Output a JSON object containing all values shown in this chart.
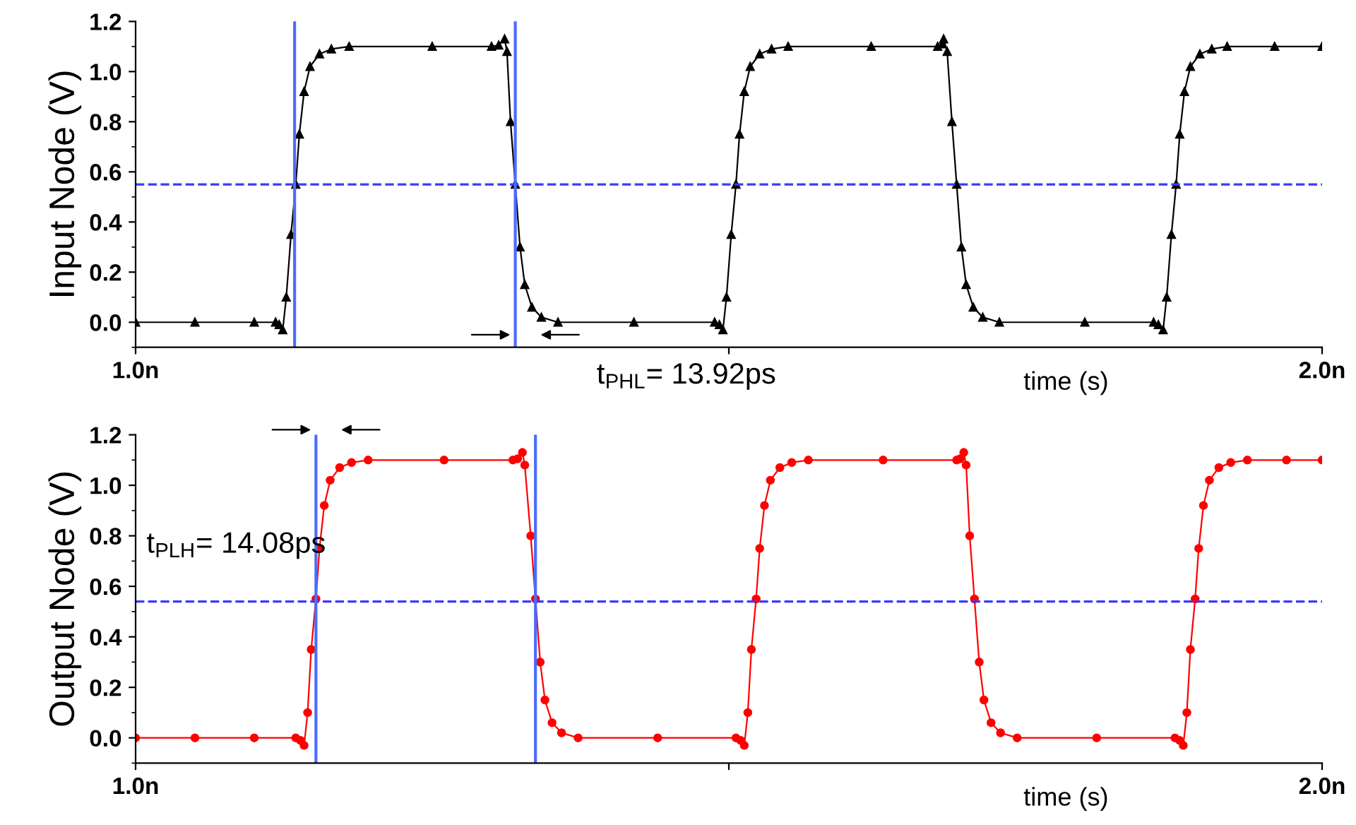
{
  "chart_data": [
    {
      "type": "line",
      "ylabel": "Input Node (V)",
      "xlabel": "time (s)",
      "xlim": [
        1.0,
        2.0
      ],
      "xticks": [
        {
          "value": 1.0,
          "label": "1.0n"
        },
        {
          "value": 1.5,
          "label": null
        },
        {
          "value": 2.0,
          "label": "2.0n"
        }
      ],
      "ylim": [
        -0.1,
        1.2
      ],
      "yticks": [
        {
          "value": 0,
          "label": "0.0"
        },
        {
          "value": 0.2,
          "label": "0.2"
        },
        {
          "value": 0.4,
          "label": "0.4"
        },
        {
          "value": 0.6,
          "label": "0.6"
        },
        {
          "value": 0.8,
          "label": "0.8"
        },
        {
          "value": 1,
          "label": "1.0"
        },
        {
          "value": 1.2,
          "label": "1.2"
        }
      ],
      "grid": false,
      "legend": false,
      "marker": "triangle",
      "line_style": "solid",
      "series": [
        {
          "color": "#000000",
          "x": [
            1.0,
            1.05,
            1.1,
            1.118,
            1.121,
            1.124,
            1.127,
            1.131,
            1.135,
            1.138,
            1.142,
            1.147,
            1.155,
            1.165,
            1.18,
            1.25,
            1.3,
            1.306,
            1.311,
            1.313,
            1.316,
            1.32,
            1.324,
            1.328,
            1.334,
            1.342,
            1.356,
            1.42,
            1.488,
            1.492,
            1.495,
            1.498,
            1.502,
            1.506,
            1.509,
            1.513,
            1.518,
            1.526,
            1.536,
            1.55,
            1.62,
            1.676,
            1.68,
            1.681,
            1.684,
            1.688,
            1.692,
            1.696,
            1.7,
            1.706,
            1.714,
            1.728,
            1.8,
            1.858,
            1.862,
            1.866,
            1.869,
            1.873,
            1.877,
            1.88,
            1.884,
            1.889,
            1.897,
            1.907,
            1.92,
            1.96,
            2.0
          ],
          "values": [
            0,
            0,
            0,
            0,
            -0.01,
            -0.03,
            0.1,
            0.35,
            0.55,
            0.75,
            0.92,
            1.02,
            1.07,
            1.09,
            1.1,
            1.1,
            1.1,
            1.105,
            1.13,
            1.08,
            0.8,
            0.55,
            0.3,
            0.15,
            0.06,
            0.02,
            0,
            0,
            0,
            -0.01,
            -0.03,
            0.1,
            0.35,
            0.55,
            0.75,
            0.92,
            1.02,
            1.07,
            1.09,
            1.1,
            1.1,
            1.1,
            1.11,
            1.13,
            1.08,
            0.8,
            0.55,
            0.3,
            0.15,
            0.06,
            0.02,
            0,
            0,
            0,
            -0.01,
            -0.03,
            0.1,
            0.35,
            0.55,
            0.75,
            0.92,
            1.02,
            1.07,
            1.09,
            1.1,
            1.1,
            1.1
          ]
        }
      ],
      "ref_lines": [
        {
          "axis": "y",
          "value": 0.55,
          "color": "#3a3aff",
          "line_style": "dashed"
        },
        {
          "axis": "x",
          "value": 1.134,
          "color": "#4a6cff",
          "line_style": "solid"
        },
        {
          "axis": "x",
          "value": 1.32,
          "color": "#4a6cff",
          "line_style": "solid"
        }
      ],
      "annotations": [
        "t$_{PHL}$= 13.92ps"
      ]
    },
    {
      "type": "line",
      "ylabel": "Output Node (V)",
      "xlabel": "time (s)",
      "xlim": [
        1.0,
        2.0
      ],
      "xticks": [
        {
          "value": 1.0,
          "label": "1.0n"
        },
        {
          "value": 1.5,
          "label": null
        },
        {
          "value": 2.0,
          "label": "2.0n"
        }
      ],
      "ylim": [
        -0.1,
        1.2
      ],
      "yticks": [
        {
          "value": 0,
          "label": "0.0"
        },
        {
          "value": 0.2,
          "label": "0.2"
        },
        {
          "value": 0.4,
          "label": "0.4"
        },
        {
          "value": 0.6,
          "label": "0.6"
        },
        {
          "value": 0.8,
          "label": "0.8"
        },
        {
          "value": 1,
          "label": "1.0"
        },
        {
          "value": 1.2,
          "label": "1.2"
        }
      ],
      "grid": false,
      "legend": false,
      "marker": "circle",
      "line_style": "solid",
      "series": [
        {
          "color": "#ff0000",
          "x": [
            1.0,
            1.05,
            1.1,
            1.135,
            1.139,
            1.142,
            1.145,
            1.148,
            1.152,
            1.155,
            1.159,
            1.164,
            1.172,
            1.182,
            1.196,
            1.26,
            1.318,
            1.322,
            1.326,
            1.328,
            1.333,
            1.337,
            1.341,
            1.345,
            1.351,
            1.359,
            1.373,
            1.44,
            1.506,
            1.51,
            1.513,
            1.516,
            1.519,
            1.523,
            1.526,
            1.53,
            1.535,
            1.543,
            1.553,
            1.567,
            1.63,
            1.692,
            1.695,
            1.698,
            1.7,
            1.703,
            1.707,
            1.711,
            1.715,
            1.721,
            1.729,
            1.743,
            1.81,
            1.876,
            1.88,
            1.883,
            1.886,
            1.889,
            1.893,
            1.896,
            1.9,
            1.905,
            1.913,
            1.923,
            1.937,
            1.97,
            2.0
          ],
          "values": [
            0,
            0,
            0,
            0,
            -0.01,
            -0.03,
            0.1,
            0.35,
            0.55,
            0.75,
            0.92,
            1.02,
            1.07,
            1.09,
            1.1,
            1.1,
            1.1,
            1.105,
            1.13,
            1.08,
            0.8,
            0.55,
            0.3,
            0.15,
            0.06,
            0.02,
            0,
            0,
            0,
            -0.01,
            -0.03,
            0.1,
            0.35,
            0.55,
            0.75,
            0.92,
            1.02,
            1.07,
            1.09,
            1.1,
            1.1,
            1.1,
            1.105,
            1.13,
            1.08,
            0.8,
            0.55,
            0.3,
            0.15,
            0.06,
            0.02,
            0,
            0,
            0,
            -0.01,
            -0.03,
            0.1,
            0.35,
            0.55,
            0.75,
            0.92,
            1.02,
            1.07,
            1.09,
            1.1,
            1.1,
            1.1
          ]
        }
      ],
      "ref_lines": [
        {
          "axis": "y",
          "value": 0.54,
          "color": "#3a3aff",
          "line_style": "dashed"
        },
        {
          "axis": "x",
          "value": 1.152,
          "color": "#4a6cff",
          "line_style": "solid"
        },
        {
          "axis": "x",
          "value": 1.337,
          "color": "#4a6cff",
          "line_style": "solid"
        }
      ],
      "annotations": [
        "t$_{PLH}$= 14.08ps"
      ]
    }
  ]
}
